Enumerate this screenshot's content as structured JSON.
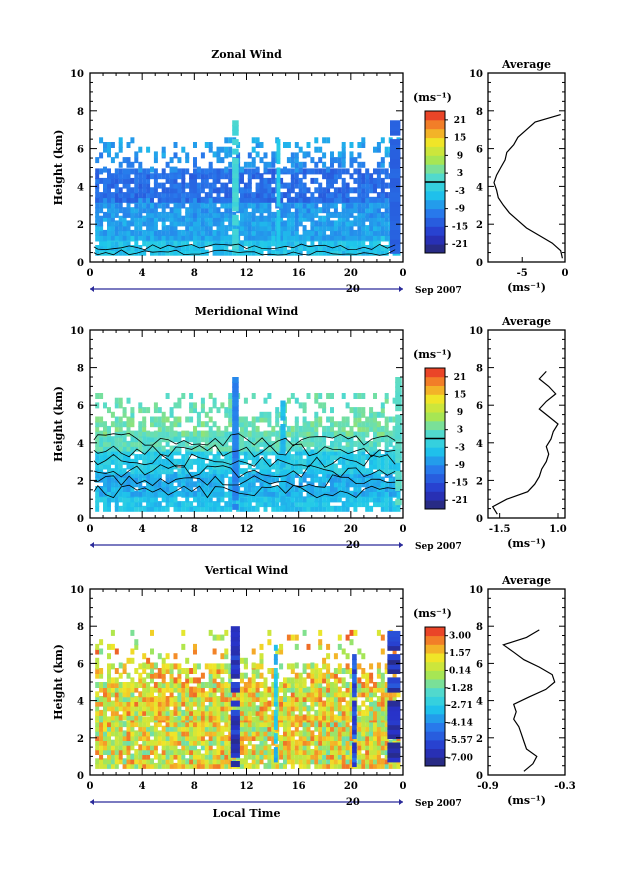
{
  "chart_data": [
    {
      "type": "heatmap",
      "title": "Zonal Wind",
      "xlabel": "",
      "ylabel": "Height (km)",
      "xlim": [
        0,
        24
      ],
      "ylim": [
        0,
        10
      ],
      "x_ticks": [
        "0",
        "4",
        "8",
        "12",
        "16",
        "20",
        "0"
      ],
      "y_ticks": [
        "0",
        "2",
        "4",
        "6",
        "8",
        "10"
      ],
      "day_label": "20",
      "date_label": "Sep 2007",
      "colorbar": {
        "unit": "(ms⁻¹)",
        "ticks": [
          "21",
          "15",
          "9",
          "3",
          "-3",
          "-9",
          "-15",
          "-21"
        ],
        "range": [
          -24,
          24
        ],
        "contour_level": 0
      },
      "bands": [
        {
          "y0": 0.4,
          "y1": 1.2,
          "value": -4,
          "coverage": 0.9
        },
        {
          "y0": 1.2,
          "y1": 2.4,
          "value": -7,
          "coverage": 0.92
        },
        {
          "y0": 2.4,
          "y1": 3.2,
          "value": -8,
          "coverage": 0.85
        },
        {
          "y0": 3.2,
          "y1": 4.8,
          "value": -12,
          "coverage": 0.8
        },
        {
          "y0": 4.8,
          "y1": 5.6,
          "value": -9,
          "coverage": 0.3
        },
        {
          "y0": 5.6,
          "y1": 6.6,
          "value": -7,
          "coverage": 0.25
        }
      ],
      "columns": [
        {
          "x": 10.9,
          "width": 0.5,
          "value": 0,
          "y1": 7.5
        },
        {
          "x": 14.3,
          "width": 0.3,
          "value": -3,
          "y1": 6.5
        },
        {
          "x": 23.0,
          "width": 0.8,
          "value": -13,
          "y1": 7.5
        }
      ],
      "average": {
        "title": "Average",
        "xlim": [
          -9,
          0
        ],
        "x_ticks": [
          "-5",
          "0"
        ],
        "xlabel": "(ms⁻¹)",
        "profile": [
          [
            0.2,
            -0.3
          ],
          [
            0.6,
            -0.5
          ],
          [
            1.0,
            -1.5
          ],
          [
            1.4,
            -3.0
          ],
          [
            1.8,
            -4.5
          ],
          [
            2.2,
            -5.5
          ],
          [
            2.6,
            -6.5
          ],
          [
            3.0,
            -7.2
          ],
          [
            3.4,
            -7.8
          ],
          [
            3.8,
            -8.0
          ],
          [
            4.2,
            -8.3
          ],
          [
            4.6,
            -8.0
          ],
          [
            5.0,
            -7.5
          ],
          [
            5.4,
            -7.0
          ],
          [
            5.8,
            -6.8
          ],
          [
            6.2,
            -6.0
          ],
          [
            6.6,
            -5.5
          ],
          [
            7.0,
            -4.5
          ],
          [
            7.4,
            -3.5
          ],
          [
            7.8,
            -0.5
          ]
        ]
      }
    },
    {
      "type": "heatmap",
      "title": "Meridional Wind",
      "xlabel": "",
      "ylabel": "Height (km)",
      "xlim": [
        0,
        24
      ],
      "ylim": [
        0,
        10
      ],
      "x_ticks": [
        "0",
        "4",
        "8",
        "12",
        "16",
        "20",
        "0"
      ],
      "y_ticks": [
        "0",
        "2",
        "4",
        "6",
        "8",
        "10"
      ],
      "day_label": "20",
      "date_label": "Sep 2007",
      "colorbar": {
        "unit": "(ms⁻¹)",
        "ticks": [
          "21",
          "15",
          "9",
          "3",
          "-3",
          "-9",
          "-15",
          "-21"
        ],
        "range": [
          -24,
          24
        ],
        "contour_level": 0
      },
      "bands": [
        {
          "y0": 0.4,
          "y1": 1.2,
          "value": -4,
          "coverage": 0.85
        },
        {
          "y0": 1.2,
          "y1": 2.4,
          "value": -6,
          "coverage": 0.9
        },
        {
          "y0": 2.4,
          "y1": 3.6,
          "value": -3,
          "coverage": 0.88
        },
        {
          "y0": 3.6,
          "y1": 4.4,
          "value": 2,
          "coverage": 0.85
        },
        {
          "y0": 4.4,
          "y1": 5.4,
          "value": 4,
          "coverage": 0.6
        },
        {
          "y0": 5.4,
          "y1": 6.6,
          "value": 3,
          "coverage": 0.3
        }
      ],
      "columns": [
        {
          "x": 10.9,
          "width": 0.5,
          "value": -10,
          "y1": 7.5
        },
        {
          "x": 14.6,
          "width": 0.4,
          "value": -5,
          "y1": 6.5
        },
        {
          "x": 23.4,
          "width": 0.5,
          "value": 2,
          "y1": 7.5
        }
      ],
      "average": {
        "title": "Average",
        "xlim": [
          -2,
          1.3
        ],
        "x_ticks": [
          "-1.5",
          "1.0"
        ],
        "xlabel": "(ms⁻¹)",
        "profile": [
          [
            0.2,
            -1.6
          ],
          [
            0.6,
            -1.8
          ],
          [
            1.0,
            -1.2
          ],
          [
            1.4,
            -0.3
          ],
          [
            1.8,
            0.0
          ],
          [
            2.2,
            0.2
          ],
          [
            2.6,
            0.3
          ],
          [
            3.0,
            0.5
          ],
          [
            3.4,
            0.6
          ],
          [
            3.8,
            0.5
          ],
          [
            4.2,
            0.7
          ],
          [
            4.6,
            0.8
          ],
          [
            5.0,
            1.0
          ],
          [
            5.4,
            0.6
          ],
          [
            5.8,
            0.2
          ],
          [
            6.2,
            0.5
          ],
          [
            6.6,
            0.9
          ],
          [
            7.0,
            0.6
          ],
          [
            7.4,
            0.2
          ],
          [
            7.8,
            0.5
          ]
        ]
      }
    },
    {
      "type": "heatmap",
      "title": "Vertical Wind",
      "xlabel": "Local Time",
      "ylabel": "Height (km)",
      "xlim": [
        0,
        24
      ],
      "ylim": [
        0,
        10
      ],
      "x_ticks": [
        "0",
        "4",
        "8",
        "12",
        "16",
        "20",
        "0"
      ],
      "y_ticks": [
        "0",
        "2",
        "4",
        "6",
        "8",
        "10"
      ],
      "day_label": "20",
      "date_label": "Sep 2007",
      "colorbar": {
        "unit": "(ms⁻¹)",
        "ticks": [
          "3.00",
          "1.57",
          "0.14",
          "-1.28",
          "-2.71",
          "-4.14",
          "-5.57",
          "-7.00"
        ],
        "range": [
          -7.7,
          3.7
        ]
      },
      "bands": [
        {
          "y0": 0.4,
          "y1": 3.0,
          "value": 0.8,
          "coverage": 0.93
        },
        {
          "y0": 3.0,
          "y1": 5.0,
          "value": 0.9,
          "coverage": 0.88
        },
        {
          "y0": 5.0,
          "y1": 5.8,
          "value": 1.0,
          "coverage": 0.55
        },
        {
          "y0": 5.8,
          "y1": 7.8,
          "value": 1.1,
          "coverage": 0.15
        }
      ],
      "columns": [
        {
          "x": 10.8,
          "width": 0.7,
          "value": -6.5,
          "y1": 8.0
        },
        {
          "x": 14.1,
          "width": 0.3,
          "value": -3.0,
          "y1": 7.0
        },
        {
          "x": 20.1,
          "width": 0.35,
          "value": -5.5,
          "y1": 6.5
        },
        {
          "x": 22.8,
          "width": 1.0,
          "value": -6.3,
          "y1": 8.0
        }
      ],
      "average": {
        "title": "Average",
        "xlim": [
          -0.9,
          -0.3
        ],
        "x_ticks": [
          "-0.9",
          "-0.3"
        ],
        "xlabel": "(ms⁻¹)",
        "profile": [
          [
            0.2,
            -0.62
          ],
          [
            0.6,
            -0.55
          ],
          [
            1.0,
            -0.52
          ],
          [
            1.4,
            -0.6
          ],
          [
            1.8,
            -0.62
          ],
          [
            2.2,
            -0.64
          ],
          [
            2.6,
            -0.66
          ],
          [
            3.0,
            -0.7
          ],
          [
            3.4,
            -0.68
          ],
          [
            3.8,
            -0.7
          ],
          [
            4.2,
            -0.58
          ],
          [
            4.6,
            -0.45
          ],
          [
            5.0,
            -0.38
          ],
          [
            5.4,
            -0.4
          ],
          [
            5.8,
            -0.5
          ],
          [
            6.2,
            -0.62
          ],
          [
            6.6,
            -0.7
          ],
          [
            7.0,
            -0.78
          ],
          [
            7.4,
            -0.6
          ],
          [
            7.8,
            -0.5
          ]
        ]
      }
    }
  ]
}
